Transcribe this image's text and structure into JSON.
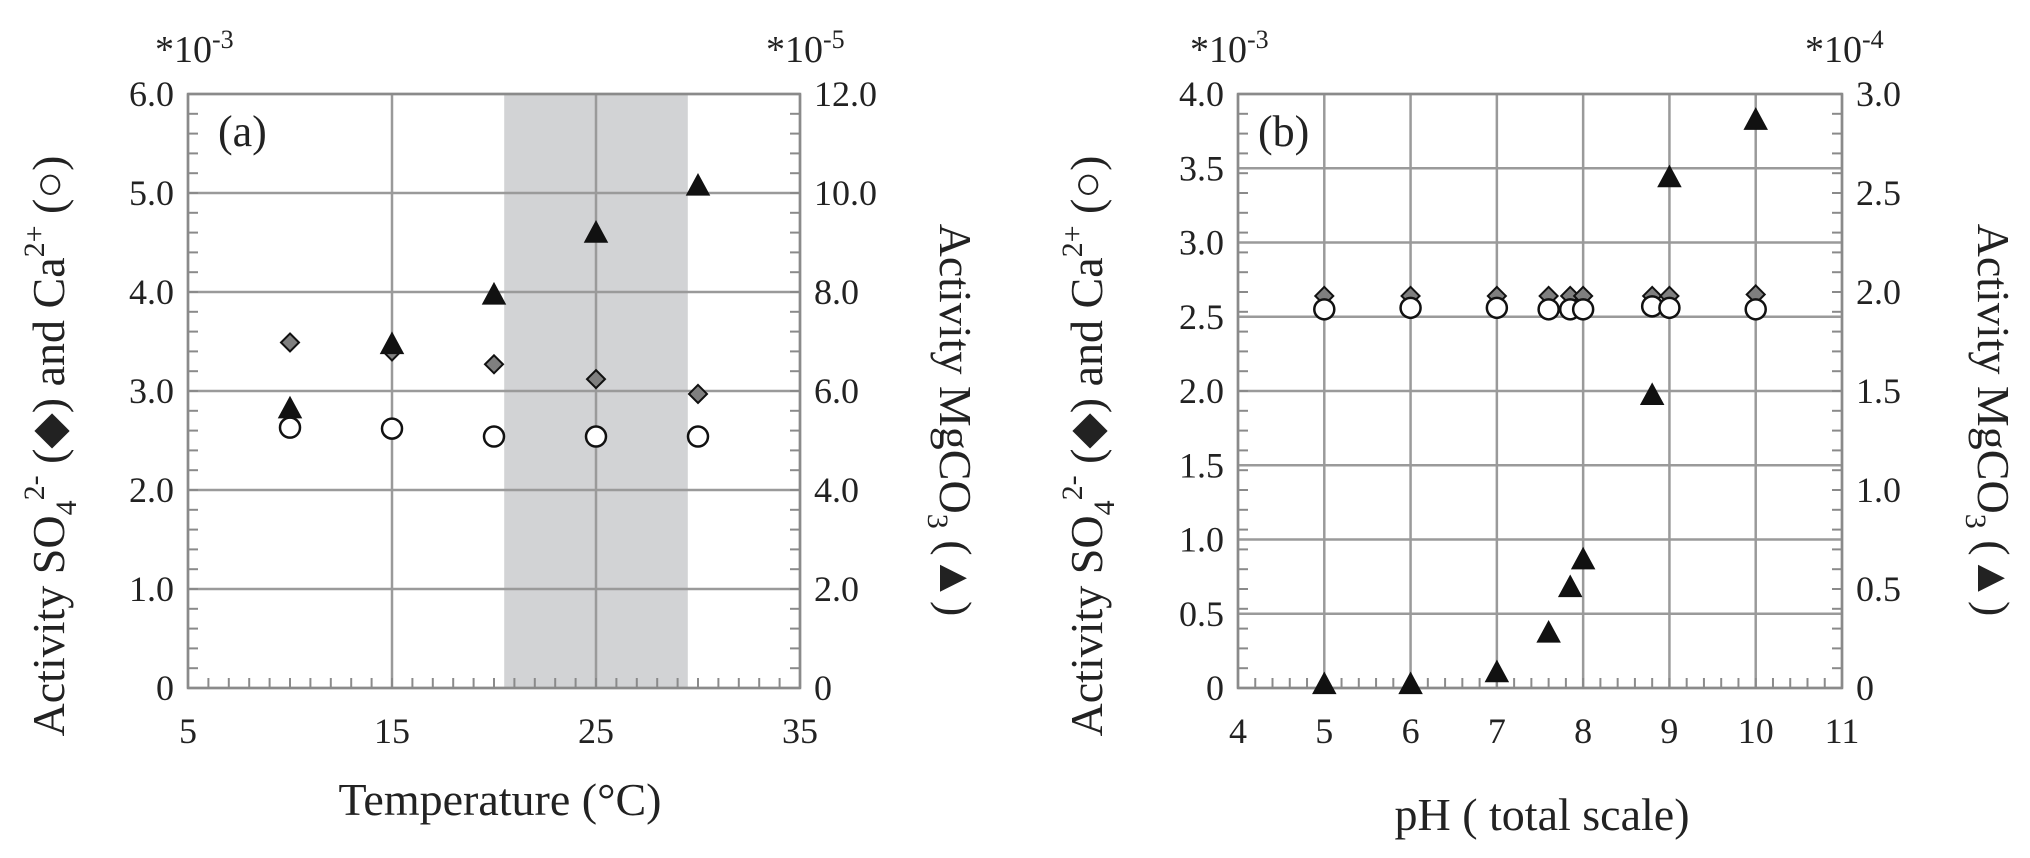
{
  "chart_data": [
    {
      "type": "scatter",
      "panel_label": "(a)",
      "xlabel": "Temperature (°C)",
      "ylabel_left": "Activity SO42- (◆) and Ca2+ (○)",
      "ylabel_right": "Activity MgCO3 (▲)",
      "left_multiplier": "*10-3",
      "right_multiplier": "*10-5",
      "xlim": [
        5,
        35
      ],
      "ylim_left": [
        0,
        6
      ],
      "ylim_right": [
        0,
        12
      ],
      "x_ticks": [
        "5",
        "15",
        "25",
        "35"
      ],
      "y_ticks_left": [
        "0",
        "1.0",
        "2.0",
        "3.0",
        "4.0",
        "5.0",
        "6.0"
      ],
      "y_ticks_right": [
        "0",
        "2.0",
        "4.0",
        "6.0",
        "8.0",
        "10.0",
        "12.0"
      ],
      "shaded_x_range": [
        20.5,
        29.5
      ],
      "grid": true,
      "series": [
        {
          "marker": "diamond",
          "axis": "left",
          "x": [
            10,
            15,
            20,
            25,
            30
          ],
          "y": [
            3.49,
            3.4,
            3.27,
            3.12,
            2.97
          ]
        },
        {
          "marker": "circle",
          "axis": "left",
          "x": [
            10,
            15,
            20,
            25,
            30
          ],
          "y": [
            2.63,
            2.62,
            2.54,
            2.54,
            2.54
          ]
        },
        {
          "marker": "triangle",
          "axis": "right",
          "x": [
            10,
            15,
            20,
            25,
            30
          ],
          "y": [
            5.65,
            6.95,
            7.95,
            9.2,
            10.15
          ]
        }
      ]
    },
    {
      "type": "scatter",
      "panel_label": "(b)",
      "xlabel": "pH ( total scale)",
      "ylabel_left": "Activity SO42- (◆) and Ca2+ (○)",
      "ylabel_right": "Activity MgCO3 (▲)",
      "left_multiplier": "*10-3",
      "right_multiplier": "*10-4",
      "xlim": [
        4,
        11
      ],
      "ylim_left": [
        0,
        4
      ],
      "ylim_right": [
        0,
        3
      ],
      "x_ticks": [
        "4",
        "5",
        "6",
        "7",
        "8",
        "9",
        "10",
        "11"
      ],
      "y_ticks_left": [
        "0",
        "0.5",
        "1.0",
        "1.5",
        "2.0",
        "2.5",
        "3.0",
        "3.5",
        "4.0"
      ],
      "y_ticks_right": [
        "0",
        "0.5",
        "1.0",
        "1.5",
        "2.0",
        "2.5",
        "3.0"
      ],
      "grid": true,
      "series": [
        {
          "marker": "diamond",
          "axis": "left",
          "x": [
            5,
            6,
            7,
            7.6,
            7.85,
            8,
            8.8,
            9,
            10
          ],
          "y": [
            2.64,
            2.64,
            2.64,
            2.64,
            2.64,
            2.64,
            2.64,
            2.64,
            2.65
          ]
        },
        {
          "marker": "circle",
          "axis": "left",
          "x": [
            5,
            6,
            7,
            7.6,
            7.85,
            8,
            8.8,
            9,
            10
          ],
          "y": [
            2.55,
            2.56,
            2.56,
            2.55,
            2.55,
            2.55,
            2.57,
            2.56,
            2.55
          ]
        },
        {
          "marker": "triangle",
          "axis": "right",
          "x": [
            5,
            6,
            7,
            7.6,
            7.85,
            8,
            8.8,
            9,
            10
          ],
          "y": [
            0.02,
            0.02,
            0.08,
            0.28,
            0.51,
            0.65,
            1.48,
            2.58,
            2.87
          ]
        }
      ]
    }
  ]
}
